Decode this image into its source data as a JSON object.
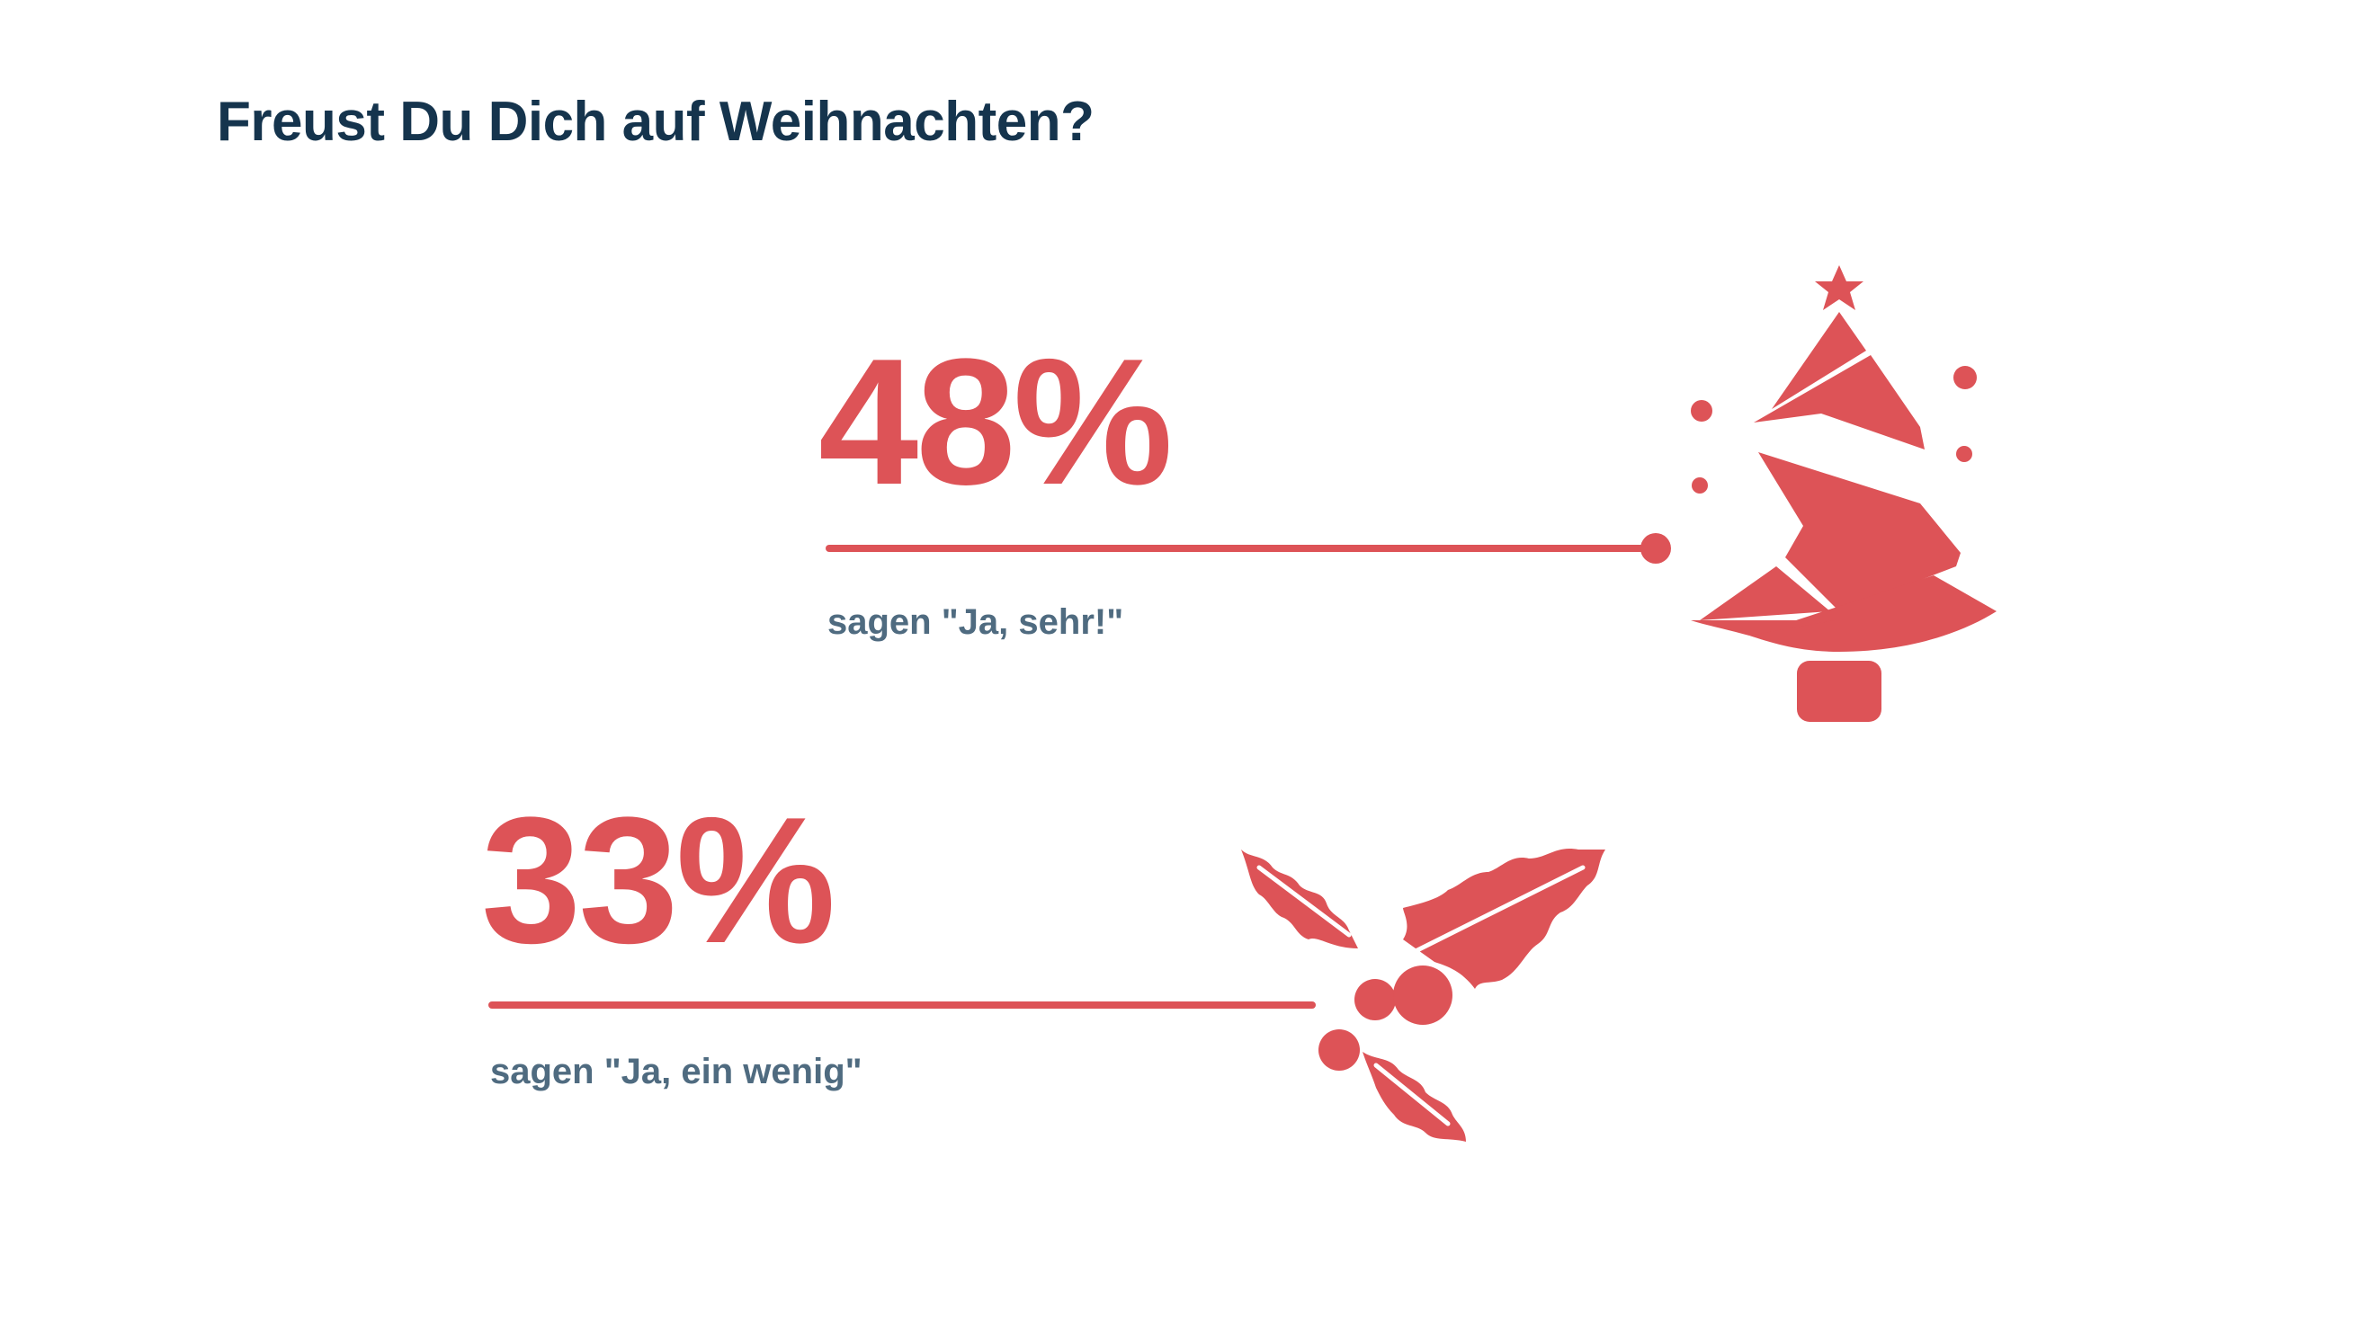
{
  "title": "Freust Du Dich auf Weihnachten?",
  "colors": {
    "accent": "#dd5357",
    "title": "#15344d",
    "caption": "#4f6b80",
    "background": "#ffffff"
  },
  "chart_data": {
    "type": "pictograph",
    "title": "Freust Du Dich auf Weihnachten?",
    "unit": "%",
    "items": [
      {
        "value": 48,
        "label": "48%",
        "caption": "sagen \"Ja, sehr!\"",
        "icon": "christmas-tree-icon"
      },
      {
        "value": 33,
        "label": "33%",
        "caption": "sagen \"Ja, ein wenig\"",
        "icon": "holly-icon"
      }
    ]
  }
}
